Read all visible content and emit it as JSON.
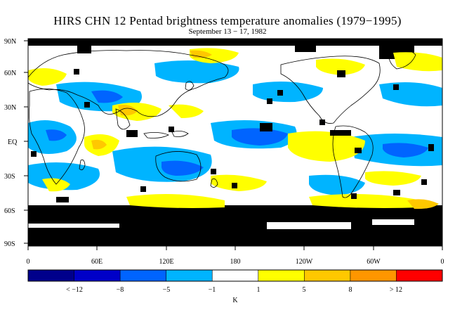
{
  "title": "HIRS CHN 12 Pentad brightness temperature anomalies (1979−1995)",
  "subtitle": "September 13 − 17, 1982",
  "lat_labels": [
    "90N",
    "60N",
    "30N",
    "EQ",
    "30S",
    "60S",
    "90S"
  ],
  "lon_labels": [
    "0",
    "60E",
    "120E",
    "180",
    "120W",
    "60W",
    "0"
  ],
  "colorbar": {
    "colors": [
      "#00008b",
      "#0000c8",
      "#0064ff",
      "#00b4ff",
      "#ffffff",
      "#ffff00",
      "#ffc800",
      "#ff9600",
      "#ff0000"
    ],
    "labels": [
      "< −12",
      "−8",
      "−5",
      "−1",
      "1",
      "5",
      "8",
      "> 12"
    ],
    "unit": "K"
  }
}
